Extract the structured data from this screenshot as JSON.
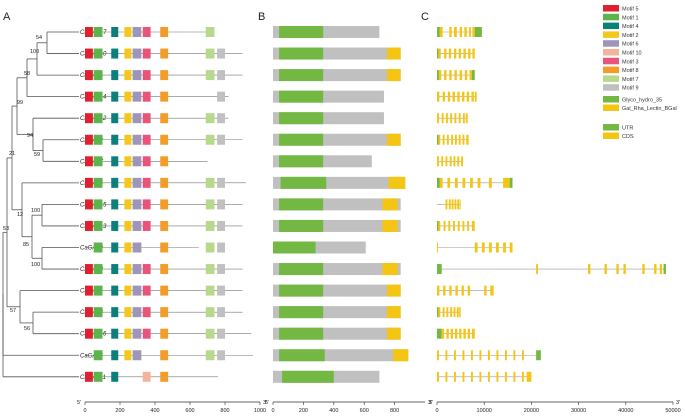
{
  "panels": {
    "a": "A",
    "b": "B",
    "c": "C"
  },
  "colors": {
    "motifs": {
      "1": "#5bb54b",
      "2": "#f3c81b",
      "3": "#e8547a",
      "4": "#0c7f7a",
      "5": "#e0202c",
      "6": "#9d96b8",
      "7": "#b7d98d",
      "8": "#f39c2a",
      "9": "#c0c0c0",
      "10": "#f2b49c"
    },
    "glyco": "#72b843",
    "gal": "#f4c513",
    "utr": "#72b843",
    "cds": "#f4c513",
    "line": "#777777",
    "tree": "#555555"
  },
  "genes": [
    "CaGAL17",
    "CaGAL10",
    "CaGAL4",
    "CaGAL14",
    "CaGAL12",
    "CaGAL2",
    "CaGAL7",
    "CaGAL5",
    "CaGAL15",
    "CaGAL13",
    "CaGAL9",
    "CaGAL8",
    "CaGAL1",
    "CaGAL3",
    "CaGAL16",
    "CaGAL6",
    "CaGAL11"
  ],
  "bootstrap": [
    "54",
    "100",
    "58",
    "99",
    "94",
    "59",
    "21",
    "12",
    "100",
    "85",
    "100",
    "53",
    "57",
    "56"
  ],
  "legend": {
    "motifs": [
      {
        "label": "Motif 5",
        "key": "5"
      },
      {
        "label": "Motif 1",
        "key": "1"
      },
      {
        "label": "Motif 4",
        "key": "4"
      },
      {
        "label": "Motif 2",
        "key": "2"
      },
      {
        "label": "Motif 6",
        "key": "6"
      },
      {
        "label": "Motif 10",
        "key": "10"
      },
      {
        "label": "Motif 3",
        "key": "3"
      },
      {
        "label": "Motif 8",
        "key": "8"
      },
      {
        "label": "Motif 7",
        "key": "7"
      },
      {
        "label": "Motif 9",
        "key": "9"
      }
    ],
    "domains": [
      "Glyco_hydro_35",
      "Gal_Rha_Lectin_BGal"
    ],
    "structure": [
      "UTR",
      "CDS"
    ]
  },
  "axis_a": {
    "end5": "5'",
    "end3": "3'",
    "ticks": [
      "0",
      "200",
      "400",
      "600",
      "800",
      "1000"
    ]
  },
  "axis_b": {
    "end5": "5'",
    "end3": "3'",
    "ticks": [
      "0",
      "200",
      "400",
      "600",
      "800"
    ]
  },
  "axis_c": {
    "end5": "5'",
    "end3": "3'",
    "ticks": [
      "0",
      "10000",
      "20000",
      "30000",
      "40000",
      "50000"
    ]
  },
  "motif_layout": {
    "motifs": [
      {
        "key": "5",
        "from": 0,
        "to": 45
      },
      {
        "key": "1",
        "from": 50,
        "to": 100
      },
      {
        "key": "4",
        "from": 150,
        "to": 190
      },
      {
        "key": "2",
        "from": 225,
        "to": 265
      },
      {
        "key": "6",
        "from": 272,
        "to": 322
      },
      {
        "key": "10",
        "from": 330,
        "to": 375
      },
      {
        "key": "3",
        "from": 330,
        "to": 375
      },
      {
        "key": "8",
        "from": 430,
        "to": 475
      },
      {
        "key": "7",
        "from": 690,
        "to": 740
      },
      {
        "key": "9",
        "from": 755,
        "to": 800
      }
    ]
  },
  "proteins": [
    {
      "len": 700,
      "motifs": [
        "5",
        "1",
        "4",
        "2",
        "6",
        "3",
        "8",
        "7"
      ]
    },
    {
      "len": 900,
      "motifs": [
        "5",
        "1",
        "4",
        "2",
        "6",
        "3",
        "8",
        "7",
        "9"
      ]
    },
    {
      "len": 900,
      "motifs": [
        "5",
        "1",
        "4",
        "2",
        "6",
        "3",
        "8",
        "7",
        "9"
      ]
    },
    {
      "len": 820,
      "motifs": [
        "5",
        "1",
        "4",
        "2",
        "6",
        "3",
        "8",
        "9"
      ]
    },
    {
      "len": 820,
      "motifs": [
        "5",
        "1",
        "4",
        "2",
        "6",
        "3",
        "8",
        "7",
        "9"
      ]
    },
    {
      "len": 900,
      "motifs": [
        "5",
        "1",
        "4",
        "2",
        "6",
        "3",
        "8",
        "7",
        "9"
      ]
    },
    {
      "len": 700,
      "motifs": [
        "5",
        "1",
        "4",
        "2",
        "6",
        "3",
        "8"
      ]
    },
    {
      "len": 920,
      "motifs": [
        "5",
        "1",
        "4",
        "2",
        "6",
        "3",
        "8",
        "7",
        "9"
      ]
    },
    {
      "len": 900,
      "motifs": [
        "5",
        "1",
        "4",
        "2",
        "6",
        "3",
        "8",
        "7",
        "9"
      ]
    },
    {
      "len": 900,
      "motifs": [
        "5",
        "1",
        "4",
        "2",
        "6",
        "3",
        "8",
        "7",
        "9"
      ]
    },
    {
      "len": 650,
      "motifs": [
        "1",
        "4",
        "2",
        "6",
        "8",
        "7",
        "9"
      ]
    },
    {
      "len": 900,
      "motifs": [
        "5",
        "1",
        "4",
        "2",
        "6",
        "3",
        "8",
        "7",
        "9"
      ]
    },
    {
      "len": 900,
      "motifs": [
        "5",
        "1",
        "4",
        "2",
        "6",
        "3",
        "8",
        "7",
        "9"
      ]
    },
    {
      "len": 900,
      "motifs": [
        "5",
        "1",
        "4",
        "2",
        "6",
        "3",
        "8",
        "7",
        "9"
      ]
    },
    {
      "len": 950,
      "motifs": [
        "5",
        "1",
        "4",
        "2",
        "6",
        "3",
        "8",
        "7",
        "9"
      ]
    },
    {
      "len": 960,
      "motifs": [
        "1",
        "4",
        "2",
        "6",
        "8",
        "7",
        "9"
      ]
    },
    {
      "len": 760,
      "motifs": [
        "5",
        "1",
        "4",
        "10",
        "8"
      ]
    }
  ],
  "domains_b": [
    {
      "len": 700,
      "glyco": [
        40,
        330
      ],
      "gal": null
    },
    {
      "len": 840,
      "glyco": [
        40,
        330
      ],
      "gal": [
        750,
        840
      ]
    },
    {
      "len": 840,
      "glyco": [
        40,
        330
      ],
      "gal": [
        750,
        840
      ]
    },
    {
      "len": 730,
      "glyco": [
        40,
        330
      ],
      "gal": null
    },
    {
      "len": 730,
      "glyco": [
        40,
        330
      ],
      "gal": null
    },
    {
      "len": 840,
      "glyco": [
        40,
        330
      ],
      "gal": [
        750,
        840
      ]
    },
    {
      "len": 650,
      "glyco": [
        40,
        330
      ],
      "gal": null
    },
    {
      "len": 870,
      "glyco": [
        50,
        350
      ],
      "gal": [
        760,
        870
      ]
    },
    {
      "len": 840,
      "glyco": [
        40,
        330
      ],
      "gal": [
        720,
        820
      ]
    },
    {
      "len": 840,
      "glyco": [
        40,
        330
      ],
      "gal": [
        720,
        820
      ]
    },
    {
      "len": 610,
      "glyco": [
        0,
        280
      ],
      "gal": null
    },
    {
      "len": 840,
      "glyco": [
        40,
        330
      ],
      "gal": [
        720,
        820
      ]
    },
    {
      "len": 840,
      "glyco": [
        40,
        330
      ],
      "gal": [
        750,
        840
      ]
    },
    {
      "len": 840,
      "glyco": [
        40,
        330
      ],
      "gal": [
        750,
        840
      ]
    },
    {
      "len": 840,
      "glyco": [
        40,
        330
      ],
      "gal": [
        750,
        840
      ]
    },
    {
      "len": 890,
      "glyco": [
        40,
        340
      ],
      "gal": [
        790,
        890
      ]
    },
    {
      "len": 700,
      "glyco": [
        60,
        400
      ],
      "gal": null
    }
  ],
  "structures": [
    {
      "len": 9500,
      "utr5": [
        0,
        600
      ],
      "cds": [
        [
          600,
          1200
        ],
        [
          2600,
          3100
        ],
        [
          3600,
          4200
        ],
        [
          4800,
          5300
        ],
        [
          5800,
          6300
        ],
        [
          6800,
          7200
        ],
        [
          7500,
          8000
        ]
      ],
      "utr3": [
        8000,
        9500
      ]
    },
    {
      "len": 8000,
      "utr5": [
        0,
        300
      ],
      "cds": [
        [
          300,
          800
        ],
        [
          1500,
          2000
        ],
        [
          2500,
          3000
        ],
        [
          3600,
          4100
        ],
        [
          4600,
          5100
        ],
        [
          5600,
          6100
        ],
        [
          6600,
          7100
        ],
        [
          7500,
          8000
        ]
      ],
      "utr3": null
    },
    {
      "len": 8000,
      "utr5": [
        0,
        400
      ],
      "cds": [
        [
          400,
          900
        ],
        [
          1500,
          2000
        ],
        [
          2600,
          3100
        ],
        [
          3700,
          4200
        ],
        [
          4800,
          5300
        ],
        [
          5900,
          6400
        ],
        [
          6900,
          7400
        ]
      ],
      "utr3": [
        7400,
        8000
      ]
    },
    {
      "len": 8400,
      "utr5": null,
      "cds": [
        [
          0,
          500
        ],
        [
          1200,
          1700
        ],
        [
          2300,
          2800
        ],
        [
          3300,
          3800
        ],
        [
          4300,
          4800
        ],
        [
          5300,
          5800
        ],
        [
          6300,
          6800
        ],
        [
          7300,
          7800
        ],
        [
          8000,
          8400
        ]
      ],
      "utr3": null
    },
    {
      "len": 6500,
      "utr5": null,
      "cds": [
        [
          0,
          400
        ],
        [
          1000,
          1400
        ],
        [
          1900,
          2300
        ],
        [
          2800,
          3200
        ],
        [
          3700,
          4100
        ],
        [
          4600,
          5000
        ],
        [
          5500,
          5900
        ],
        [
          6100,
          6500
        ]
      ],
      "utr3": null
    },
    {
      "len": 6700,
      "utr5": [
        0,
        300
      ],
      "cds": [
        [
          300,
          700
        ],
        [
          1200,
          1600
        ],
        [
          2100,
          2500
        ],
        [
          3000,
          3400
        ],
        [
          3800,
          4200
        ],
        [
          4600,
          5000
        ],
        [
          5400,
          5800
        ],
        [
          6200,
          6700
        ]
      ],
      "utr3": null
    },
    {
      "len": 5500,
      "utr5": null,
      "cds": [
        [
          0,
          400
        ],
        [
          900,
          1300
        ],
        [
          1800,
          2200
        ],
        [
          2700,
          3100
        ],
        [
          3500,
          3900
        ],
        [
          4300,
          4700
        ],
        [
          5100,
          5500
        ]
      ],
      "utr3": null
    },
    {
      "len": 16000,
      "utr5": [
        0,
        600
      ],
      "cds": [
        [
          600,
          1200
        ],
        [
          2200,
          2800
        ],
        [
          3800,
          4400
        ],
        [
          5400,
          6000
        ],
        [
          7000,
          7600
        ],
        [
          8600,
          9200
        ],
        [
          11000,
          11600
        ],
        [
          14000,
          15400
        ]
      ],
      "utr3": [
        15400,
        16000
      ]
    },
    {
      "len": 5000,
      "utr5": null,
      "cds": [
        [
          1800,
          2200
        ],
        [
          2500,
          2900
        ],
        [
          3100,
          3500
        ],
        [
          3700,
          4100
        ],
        [
          4300,
          4700
        ],
        [
          4800,
          5000
        ]
      ],
      "utr3": null
    },
    {
      "len": 8000,
      "utr5": [
        0,
        300
      ],
      "cds": [
        [
          300,
          700
        ],
        [
          1400,
          1800
        ],
        [
          2400,
          2800
        ],
        [
          3400,
          3800
        ],
        [
          4400,
          4800
        ],
        [
          5400,
          5800
        ],
        [
          6400,
          6800
        ],
        [
          7400,
          8000
        ]
      ],
      "utr3": null
    },
    {
      "len": 16000,
      "utr5": null,
      "cds": [
        [
          0,
          200
        ],
        [
          8000,
          8600
        ],
        [
          9500,
          10100
        ],
        [
          11000,
          11600
        ],
        [
          12500,
          13100
        ],
        [
          14000,
          14600
        ],
        [
          15400,
          16000
        ]
      ],
      "utr3": null
    },
    {
      "len": 48500,
      "utr5": [
        0,
        1000
      ],
      "cds": [
        [
          21000,
          21400
        ],
        [
          32000,
          32500
        ],
        [
          35500,
          36000
        ],
        [
          38000,
          38500
        ],
        [
          39500,
          40000
        ],
        [
          43500,
          44000
        ],
        [
          46000,
          46500
        ],
        [
          47200,
          47700
        ]
      ],
      "utr3": [
        48000,
        48500
      ]
    },
    {
      "len": 12000,
      "utr5": null,
      "cds": [
        [
          0,
          500
        ],
        [
          1300,
          1800
        ],
        [
          2600,
          3100
        ],
        [
          3900,
          4400
        ],
        [
          5200,
          5700
        ],
        [
          6500,
          7000
        ],
        [
          10000,
          10500
        ],
        [
          11300,
          12000
        ]
      ],
      "utr3": null
    },
    {
      "len": 5000,
      "utr5": [
        0,
        300
      ],
      "cds": [
        [
          300,
          700
        ],
        [
          1200,
          1600
        ],
        [
          2000,
          2400
        ],
        [
          2800,
          3200
        ],
        [
          3500,
          3900
        ],
        [
          4200,
          4600
        ],
        [
          4700,
          5000
        ]
      ],
      "utr3": null
    },
    {
      "len": 8000,
      "utr5": [
        0,
        1000
      ],
      "cds": [
        [
          1000,
          1500
        ],
        [
          2000,
          2500
        ],
        [
          2900,
          3400
        ],
        [
          3800,
          4300
        ],
        [
          4700,
          5200
        ],
        [
          5600,
          6100
        ],
        [
          6500,
          7000
        ],
        [
          7400,
          8000
        ]
      ],
      "utr3": null
    },
    {
      "len": 22000,
      "utr5": null,
      "cds": [
        [
          0,
          400
        ],
        [
          1800,
          2200
        ],
        [
          3600,
          4000
        ],
        [
          5400,
          5800
        ],
        [
          7200,
          7600
        ],
        [
          9000,
          9400
        ],
        [
          10800,
          11200
        ],
        [
          12600,
          13000
        ],
        [
          14400,
          14800
        ],
        [
          16200,
          16600
        ],
        [
          18000,
          18400
        ]
      ],
      "utr3": [
        21000,
        22000
      ]
    },
    {
      "len": 20000,
      "utr5": null,
      "cds": [
        [
          0,
          400
        ],
        [
          1800,
          2200
        ],
        [
          3600,
          4000
        ],
        [
          5400,
          5800
        ],
        [
          7200,
          7600
        ],
        [
          9000,
          9400
        ],
        [
          10800,
          11200
        ],
        [
          12600,
          13000
        ],
        [
          14400,
          14800
        ],
        [
          16200,
          16600
        ],
        [
          18000,
          18400
        ],
        [
          19000,
          20000
        ]
      ],
      "utr3": null
    }
  ]
}
